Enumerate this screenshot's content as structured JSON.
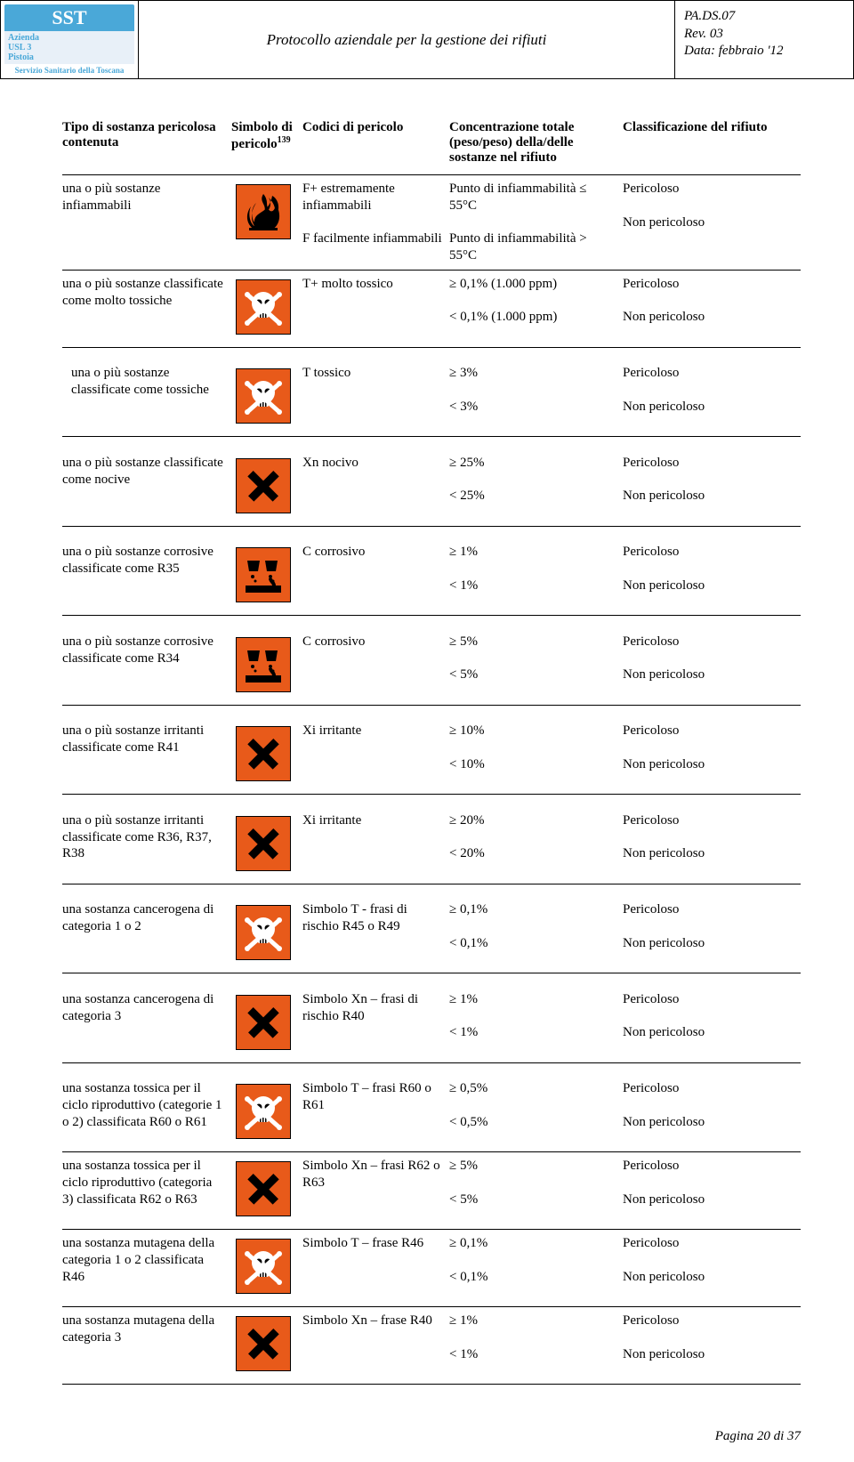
{
  "header": {
    "logo_top": "SST",
    "logo_mid": "Azienda\nUSL 3\nPistoia",
    "logo_bot": "Servizio Sanitario della Toscana",
    "title": "Protocollo aziendale per la gestione dei rifiuti",
    "meta1": "PA.DS.07",
    "meta2": "Rev. 03",
    "meta3": "Data: febbraio '12"
  },
  "columns": {
    "c1": "Tipo di sostanza pericolosa contenuta",
    "c2a": "Simbolo di",
    "c2b": "pericolo",
    "c2sup": "139",
    "c3": "Codici di pericolo",
    "c4": "Concentrazione totale (peso/peso) della/delle sostanze nel rifiuto",
    "c5": "Classificazione del rifiuto"
  },
  "rows": [
    {
      "sub": "una o più sostanze infiammabili",
      "sym": "flame",
      "cod1": "F+ estremamente infiammabili",
      "cod2": "F  facilmente infiammabili",
      "conc1": "Punto di infiammabilità ≤ 55°C",
      "conc2": "Punto di infiammabilità > 55°C",
      "cls1": "Pericoloso",
      "cls2": "Non pericoloso"
    },
    {
      "sub": "una o più sostanze classificate come molto tossiche",
      "sym": "skull",
      "cod1": "T+ molto tossico",
      "cod2": "",
      "conc1": "≥ 0,1% (1.000 ppm)",
      "conc2": "< 0,1% (1.000 ppm)",
      "cls1": "Pericoloso",
      "cls2": "Non pericoloso",
      "gap": true
    },
    {
      "sub": "una o più sostanze classificate come tossiche",
      "sym": "skull",
      "cod1": "T  tossico",
      "cod2": "",
      "conc1": "≥ 3%",
      "conc2": "< 3%",
      "cls1": "Pericoloso",
      "cls2": "Non pericoloso",
      "indent": true,
      "gap": true
    },
    {
      "sub": "una o più sostanze classificate come nocive",
      "sym": "xmark",
      "cod1": "Xn  nocivo",
      "cod2": "",
      "conc1": "≥ 25%",
      "conc2": "< 25%",
      "cls1": "Pericoloso",
      "cls2": "Non pericoloso",
      "gap": true
    },
    {
      "sub": "una o più sostanze corrosive classificate come R35",
      "sym": "corr",
      "cod1": "C  corrosivo",
      "cod2": "",
      "conc1": "≥ 1%",
      "conc2": "< 1%",
      "cls1": "Pericoloso",
      "cls2": "Non pericoloso",
      "gap": true
    },
    {
      "sub": "una o più sostanze corrosive classificate come R34",
      "sym": "corr",
      "cod1": "C  corrosivo",
      "cod2": "",
      "conc1": "≥ 5%",
      "conc2": "< 5%",
      "cls1": "Pericoloso",
      "cls2": "Non pericoloso",
      "gap": true
    },
    {
      "sub": "una o più sostanze irritanti classificate come R41",
      "sym": "xmark",
      "cod1": "Xi  irritante",
      "cod2": "",
      "conc1": "≥ 10%",
      "conc2": "< 10%",
      "cls1": "Pericoloso",
      "cls2": "Non pericoloso",
      "gap": true
    },
    {
      "sub": "una o più sostanze irritanti classificate come R36, R37, R38",
      "sym": "xmark",
      "cod1": "Xi  irritante",
      "cod2": "",
      "conc1": "≥ 20%",
      "conc2": "< 20%",
      "cls1": "Pericoloso",
      "cls2": "Non pericoloso",
      "gap": true
    },
    {
      "sub": "una sostanza cancerogena di categoria 1 o 2",
      "sym": "skull",
      "cod1": "Simbolo T - frasi di rischio R45 o R49",
      "cod2": "",
      "conc1": "≥ 0,1%",
      "conc2": "< 0,1%",
      "cls1": "Pericoloso",
      "cls2": "Non pericoloso",
      "gap": true
    },
    {
      "sub": "una sostanza cancerogena di categoria 3",
      "sym": "xmark",
      "cod1": "Simbolo Xn – frasi di rischio R40",
      "cod2": "",
      "conc1": "≥ 1%",
      "conc2": "< 1%",
      "cls1": "Pericoloso",
      "cls2": "Non pericoloso",
      "gap": true
    },
    {
      "sub": "una sostanza tossica per il ciclo riproduttivo (categorie 1 o 2) classificata R60 o R61",
      "sym": "skull",
      "cod1": "Simbolo T – frasi R60 o R61",
      "cod2": "",
      "conc1": "≥ 0,5%",
      "conc2": "< 0,5%",
      "cls1": "Pericoloso",
      "cls2": "Non pericoloso"
    },
    {
      "sub": "una sostanza tossica per il ciclo riproduttivo (categoria 3) classificata R62 o R63",
      "sym": "xmark",
      "cod1": "Simbolo Xn – frasi R62 o R63",
      "cod2": "",
      "conc1": "≥ 5%",
      "conc2": "< 5%",
      "cls1": "Pericoloso",
      "cls2": "Non pericoloso"
    },
    {
      "sub": "una sostanza mutagena della categoria 1 o 2 classificata R46",
      "sym": "skull",
      "cod1": "Simbolo T – frase R46",
      "cod2": "",
      "conc1": "≥ 0,1%",
      "conc2": "< 0,1%",
      "cls1": "Pericoloso",
      "cls2": "Non pericoloso"
    },
    {
      "sub": "una sostanza mutagena della categoria 3",
      "sym": "xmark",
      "cod1": "Simbolo Xn – frase R40",
      "cod2": "",
      "conc1": "≥ 1%",
      "conc2": "< 1%",
      "cls1": "Pericoloso",
      "cls2": "Non pericoloso"
    }
  ],
  "footer": "Pagina 20 di 37",
  "colors": {
    "hazard_bg": "#e85a1a",
    "badge_blue": "#4aa8d8"
  }
}
